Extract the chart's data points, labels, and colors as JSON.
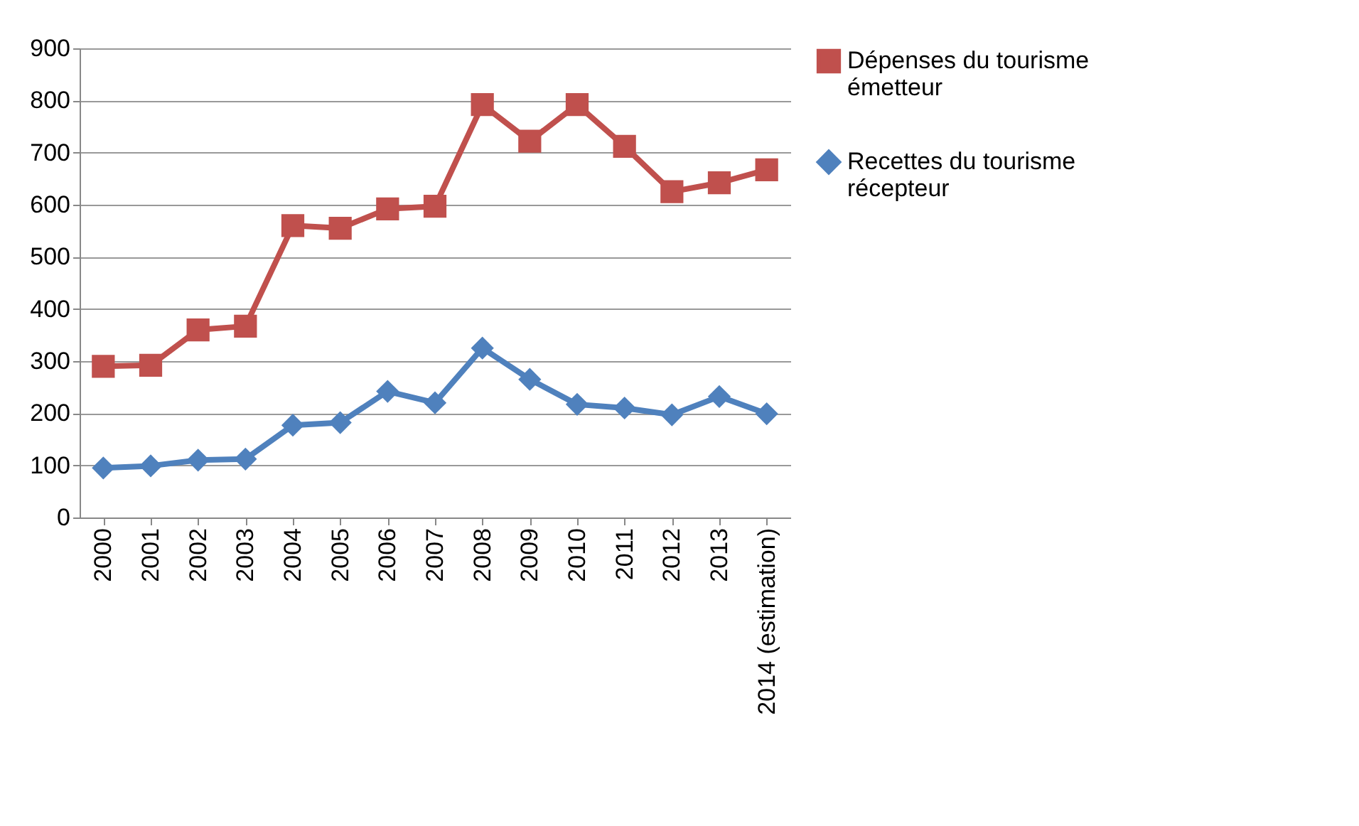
{
  "chart_data": {
    "type": "line",
    "categories": [
      "2000",
      "2001",
      "2002",
      "2003",
      "2004",
      "2005",
      "2006",
      "2007",
      "2008",
      "2009",
      "2010",
      "2011",
      "2012",
      "2013",
      "2014 (estimation)"
    ],
    "series": [
      {
        "name": "Dépenses du tourisme émetteur",
        "color": "#c0504d",
        "marker": "square",
        "values": [
          290,
          292,
          360,
          367,
          560,
          555,
          592,
          597,
          792,
          722,
          792,
          712,
          625,
          642,
          667
        ]
      },
      {
        "name": "Recettes du tourisme récepteur",
        "color": "#4f81bd",
        "marker": "diamond",
        "values": [
          95,
          99,
          110,
          112,
          177,
          182,
          242,
          220,
          325,
          265,
          217,
          210,
          197,
          232,
          199
        ]
      }
    ],
    "ylim": [
      0,
      900
    ],
    "yticks": [
      0,
      100,
      200,
      300,
      400,
      500,
      600,
      700,
      800,
      900
    ],
    "grid": "y",
    "legend": "right",
    "line_style": "solid"
  }
}
